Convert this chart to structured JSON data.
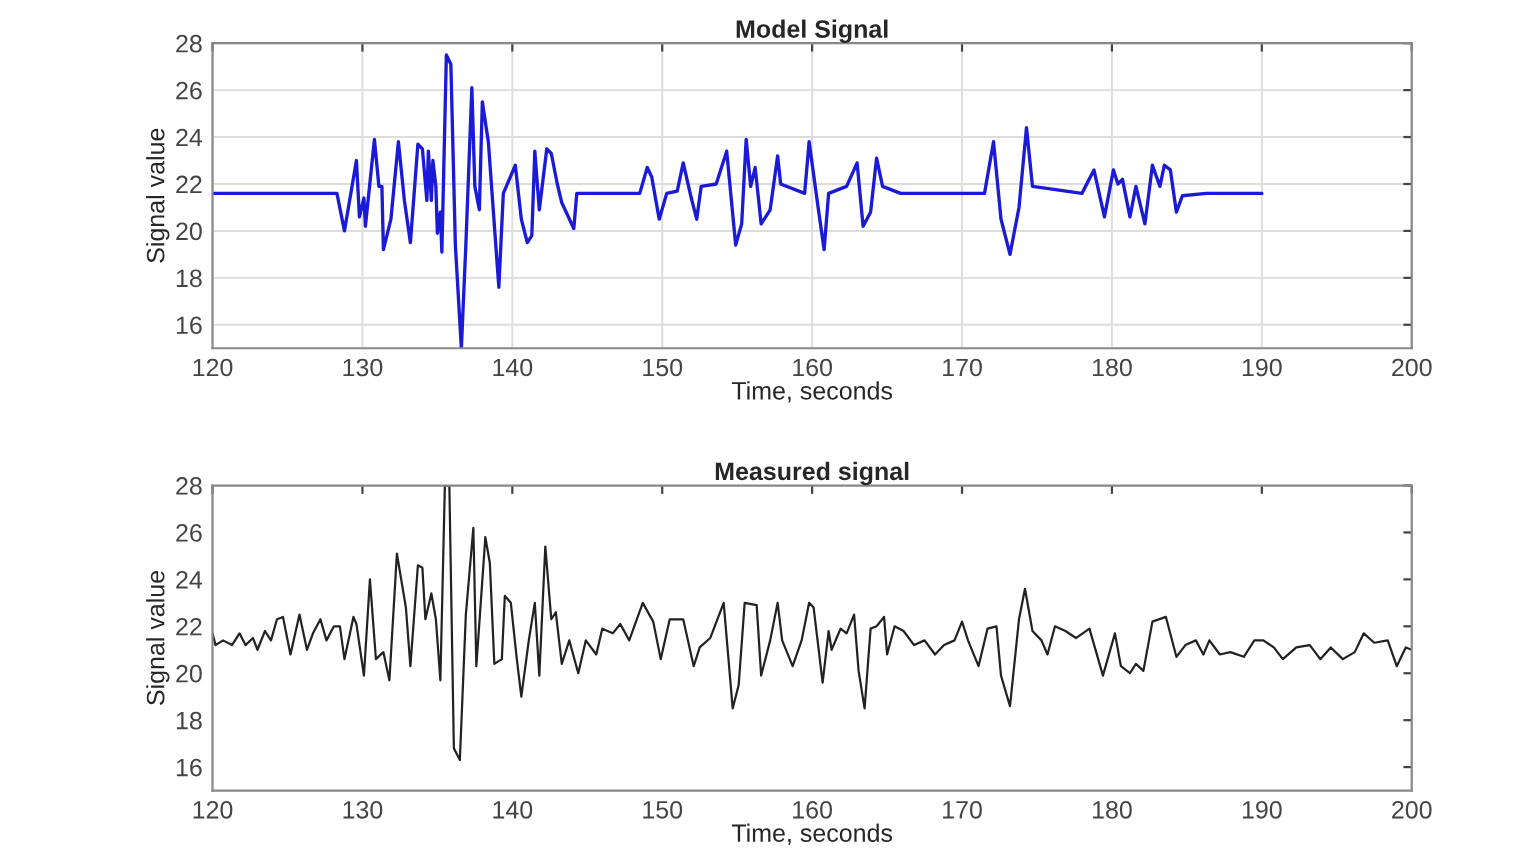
{
  "chart_data": [
    {
      "type": "line",
      "title": "Model Signal",
      "xlabel": "Time, seconds",
      "ylabel": "Signal value",
      "xlim": [
        120,
        200
      ],
      "xticks": [
        120,
        130,
        140,
        150,
        160,
        170,
        180,
        190,
        200
      ],
      "ylim": [
        15,
        28
      ],
      "yticks": [
        16,
        18,
        20,
        22,
        24,
        26,
        28
      ],
      "grid": true,
      "x": [
        120,
        128.3,
        128.8,
        129.6,
        129.8,
        130.1,
        130.2,
        130.8,
        131.1,
        131.3,
        131.4,
        131.9,
        132.4,
        132.8,
        133.2,
        133.7,
        134.0,
        134.3,
        134.4,
        134.6,
        134.7,
        134.9,
        135.0,
        135.2,
        135.3,
        135.6,
        135.9,
        136.2,
        136.6,
        136.9,
        137.3,
        137.5,
        137.8,
        138.0,
        138.4,
        139.1,
        139.4,
        140.2,
        140.6,
        141.0,
        141.3,
        141.5,
        141.8,
        142.3,
        142.6,
        143.0,
        143.3,
        144.1,
        144.3,
        148.5,
        149.0,
        149.3,
        149.8,
        150.3,
        151.0,
        151.4,
        151.9,
        152.3,
        152.6,
        153.6,
        154.3,
        154.9,
        155.3,
        155.6,
        155.9,
        156.2,
        156.6,
        157.2,
        157.7,
        157.9,
        159.5,
        159.8,
        160.4,
        160.8,
        161.1,
        162.3,
        163.0,
        163.4,
        163.9,
        164.3,
        164.7,
        165.9,
        171.5,
        172.1,
        172.6,
        173.2,
        173.8,
        174.3,
        174.7,
        178.0,
        178.8,
        179.5,
        180.1,
        180.4,
        180.7,
        181.2,
        181.6,
        182.2,
        182.7,
        183.2,
        183.5,
        183.9,
        184.3,
        184.7,
        186.3,
        190.0
      ],
      "series": [
        {
          "color": "#1a1ad8",
          "values": [
            21.6,
            21.6,
            20.0,
            23.0,
            20.6,
            21.4,
            20.2,
            23.9,
            21.9,
            21.9,
            19.2,
            20.5,
            23.8,
            21.3,
            19.5,
            23.7,
            23.5,
            21.3,
            23.4,
            21.3,
            23.0,
            21.9,
            19.9,
            20.8,
            19.1,
            27.5,
            27.1,
            19.4,
            15.0,
            19.4,
            26.1,
            21.9,
            20.9,
            25.5,
            23.8,
            17.6,
            21.6,
            22.8,
            20.5,
            19.5,
            19.8,
            23.4,
            20.9,
            23.5,
            23.3,
            22.0,
            21.2,
            20.1,
            21.6,
            21.6,
            22.7,
            22.3,
            20.5,
            21.6,
            21.7,
            22.9,
            21.5,
            20.5,
            21.9,
            22.0,
            23.4,
            19.4,
            20.3,
            23.9,
            21.9,
            22.7,
            20.3,
            20.9,
            23.2,
            22.0,
            21.6,
            23.8,
            21.0,
            19.2,
            21.6,
            21.9,
            22.9,
            20.2,
            20.8,
            23.1,
            21.9,
            21.6,
            21.6,
            23.8,
            20.5,
            19.0,
            21.0,
            24.4,
            21.9,
            21.6,
            22.6,
            20.6,
            22.6,
            22.0,
            22.2,
            20.6,
            21.9,
            20.3,
            22.8,
            21.9,
            22.8,
            22.6,
            20.8,
            21.5,
            21.6,
            21.6
          ]
        }
      ]
    },
    {
      "type": "line",
      "title": "Measured signal",
      "xlabel": "Time, seconds",
      "ylabel": "Signal value",
      "xlim": [
        120,
        200
      ],
      "xticks": [
        120,
        130,
        140,
        150,
        160,
        170,
        180,
        190,
        200
      ],
      "ylim": [
        15,
        28
      ],
      "yticks": [
        16,
        18,
        20,
        22,
        24,
        26,
        28
      ],
      "grid": false,
      "x": [
        120,
        120.2,
        120.7,
        121.3,
        121.8,
        122.2,
        122.7,
        123.0,
        123.5,
        123.9,
        124.3,
        124.7,
        125.2,
        125.8,
        126.3,
        126.7,
        127.2,
        127.6,
        128.1,
        128.5,
        128.8,
        129.4,
        129.6,
        130.1,
        130.5,
        130.9,
        131.4,
        131.8,
        132.3,
        132.9,
        133.2,
        133.7,
        134.0,
        134.2,
        134.6,
        134.9,
        135.2,
        135.5,
        135.8,
        136.1,
        136.5,
        136.9,
        137.4,
        137.6,
        138.2,
        138.5,
        138.8,
        139.3,
        139.5,
        139.9,
        140.3,
        140.6,
        141.1,
        141.5,
        141.8,
        142.2,
        142.6,
        142.9,
        143.3,
        143.8,
        144.4,
        144.9,
        145.6,
        146.0,
        146.7,
        147.2,
        147.8,
        148.7,
        149.4,
        149.9,
        150.5,
        151.4,
        152.1,
        152.5,
        153.2,
        154.1,
        154.7,
        155.1,
        155.5,
        156.3,
        156.6,
        157.2,
        157.7,
        158.0,
        158.7,
        159.3,
        159.8,
        160.1,
        160.7,
        161.1,
        161.3,
        161.9,
        162.3,
        162.8,
        163.1,
        163.5,
        163.9,
        164.3,
        164.8,
        165.0,
        165.5,
        166.1,
        166.8,
        167.5,
        168.2,
        168.8,
        169.5,
        170.0,
        170.4,
        171.1,
        171.7,
        172.3,
        172.6,
        173.2,
        173.8,
        174.2,
        174.7,
        175.3,
        175.7,
        176.2,
        176.9,
        177.6,
        178.5,
        179.4,
        180.2,
        180.6,
        181.2,
        181.6,
        182.1,
        182.7,
        183.6,
        184.3,
        184.9,
        185.6,
        186.1,
        186.5,
        187.2,
        187.9,
        188.8,
        189.5,
        190.1,
        190.8,
        191.4,
        192.3,
        193.2,
        193.9,
        194.6,
        195.4,
        196.2,
        196.8,
        197.5,
        198.4,
        199.0,
        199.6,
        200.0
      ],
      "series": [
        {
          "color": "#222222",
          "values": [
            21.7,
            21.2,
            21.4,
            21.2,
            21.7,
            21.2,
            21.5,
            21.0,
            21.8,
            21.4,
            22.3,
            22.4,
            20.8,
            22.5,
            21.0,
            21.7,
            22.3,
            21.4,
            22.0,
            22.0,
            20.6,
            22.4,
            22.1,
            19.9,
            24.0,
            20.6,
            20.9,
            19.7,
            25.1,
            22.8,
            20.3,
            24.6,
            24.5,
            22.3,
            23.4,
            22.3,
            19.7,
            28.0,
            28.0,
            16.8,
            16.3,
            22.5,
            26.2,
            20.3,
            25.8,
            24.7,
            20.4,
            20.6,
            23.3,
            23.0,
            20.6,
            19.0,
            21.4,
            23.0,
            19.9,
            25.4,
            22.3,
            22.6,
            20.4,
            21.4,
            20.0,
            21.4,
            20.8,
            21.9,
            21.7,
            22.1,
            21.4,
            23.0,
            22.2,
            20.6,
            22.3,
            22.3,
            20.3,
            21.1,
            21.5,
            23.0,
            18.5,
            19.5,
            23.0,
            22.9,
            19.9,
            21.4,
            23.0,
            21.4,
            20.3,
            21.4,
            23.0,
            22.8,
            19.6,
            21.8,
            21.0,
            21.9,
            21.7,
            22.5,
            20.1,
            18.5,
            21.9,
            22.0,
            22.4,
            20.8,
            22.0,
            21.8,
            21.2,
            21.4,
            20.8,
            21.2,
            21.4,
            22.2,
            21.4,
            20.3,
            21.9,
            22.0,
            19.9,
            18.6,
            22.3,
            23.6,
            21.8,
            21.4,
            20.8,
            22.0,
            21.8,
            21.5,
            21.9,
            19.9,
            21.7,
            20.3,
            20.0,
            20.4,
            20.1,
            22.2,
            22.4,
            20.7,
            21.2,
            21.4,
            20.8,
            21.4,
            20.8,
            20.9,
            20.7,
            21.4,
            21.4,
            21.1,
            20.6,
            21.1,
            21.2,
            20.6,
            21.1,
            20.6,
            20.9,
            21.7,
            21.3,
            21.4,
            20.3,
            21.1,
            21.0
          ]
        }
      ]
    }
  ]
}
